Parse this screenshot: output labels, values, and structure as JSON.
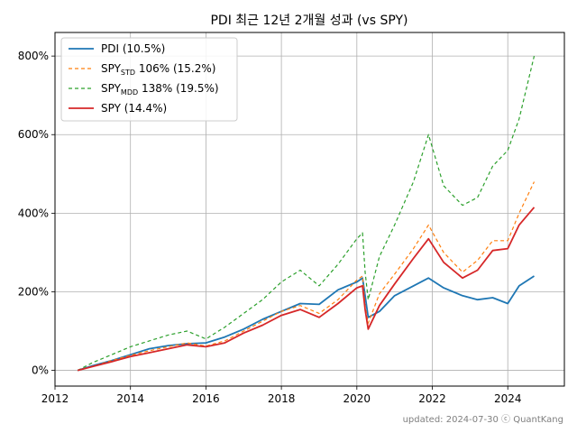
{
  "chart_data": {
    "type": "line",
    "title": "PDI 최근 12년 2개월 성과 (vs SPY)",
    "xlabel": "",
    "ylabel": "",
    "xlim": [
      2012.0,
      2025.5
    ],
    "ylim": [
      -40,
      860
    ],
    "x_ticks": [
      2012,
      2014,
      2016,
      2018,
      2020,
      2022,
      2024
    ],
    "x_tick_labels": [
      "2012",
      "2014",
      "2016",
      "2018",
      "2020",
      "2022",
      "2024"
    ],
    "y_ticks": [
      0,
      200,
      400,
      600,
      800
    ],
    "y_tick_labels": [
      "0%",
      "200%",
      "400%",
      "600%",
      "800%"
    ],
    "grid": true,
    "legend_position": "top-left",
    "footer": "updated: 2024-07-30 ⓒ QuantKang",
    "series": [
      {
        "name": "PDI (10.5%)",
        "legend": {
          "base": "PDI (10.5%)",
          "sub": "",
          "suffix": ""
        },
        "color": "#1f77b4",
        "dash": "solid",
        "width": 1.8,
        "x": [
          2012.6,
          2013.0,
          2013.5,
          2014.0,
          2014.5,
          2015.0,
          2015.5,
          2016.0,
          2016.5,
          2017.0,
          2017.5,
          2018.0,
          2018.5,
          2019.0,
          2019.5,
          2020.0,
          2020.15,
          2020.22,
          2020.3,
          2020.6,
          2021.0,
          2021.5,
          2021.9,
          2022.3,
          2022.8,
          2023.2,
          2023.6,
          2024.0,
          2024.3,
          2024.7
        ],
        "y": [
          0,
          12,
          25,
          40,
          55,
          63,
          68,
          70,
          85,
          105,
          130,
          150,
          170,
          168,
          205,
          225,
          235,
          190,
          135,
          150,
          190,
          215,
          235,
          210,
          190,
          180,
          185,
          170,
          215,
          240
        ]
      },
      {
        "name": "SPY STD 106% (15.2%)",
        "legend": {
          "base": "SPY",
          "sub": "STD",
          "suffix": " 106% (15.2%)"
        },
        "color": "#ff7f0e",
        "dash": "4,3",
        "width": 1.2,
        "x": [
          2012.6,
          2013.0,
          2013.5,
          2014.0,
          2014.5,
          2015.0,
          2015.5,
          2016.0,
          2016.5,
          2017.0,
          2017.5,
          2018.0,
          2018.5,
          2019.0,
          2019.5,
          2020.0,
          2020.15,
          2020.22,
          2020.3,
          2020.6,
          2021.0,
          2021.5,
          2021.9,
          2022.3,
          2022.8,
          2023.2,
          2023.6,
          2024.0,
          2024.3,
          2024.7
        ],
        "y": [
          0,
          10,
          25,
          38,
          50,
          60,
          70,
          62,
          75,
          100,
          125,
          150,
          165,
          145,
          180,
          230,
          240,
          165,
          120,
          195,
          245,
          310,
          370,
          300,
          250,
          280,
          330,
          330,
          400,
          480
        ]
      },
      {
        "name": "SPY MDD 138% (19.5%)",
        "legend": {
          "base": "SPY",
          "sub": "MDD",
          "suffix": " 138% (19.5%)"
        },
        "color": "#2ca02c",
        "dash": "4,3",
        "width": 1.2,
        "x": [
          2012.6,
          2013.0,
          2013.5,
          2014.0,
          2014.5,
          2015.0,
          2015.5,
          2016.0,
          2016.5,
          2017.0,
          2017.5,
          2018.0,
          2018.5,
          2019.0,
          2019.5,
          2020.0,
          2020.15,
          2020.22,
          2020.3,
          2020.6,
          2021.0,
          2021.5,
          2021.9,
          2022.3,
          2022.8,
          2023.2,
          2023.6,
          2024.0,
          2024.3,
          2024.7
        ],
        "y": [
          0,
          20,
          40,
          60,
          75,
          90,
          100,
          80,
          110,
          145,
          180,
          225,
          255,
          215,
          270,
          335,
          350,
          250,
          180,
          290,
          370,
          480,
          600,
          470,
          420,
          440,
          520,
          560,
          640,
          800
        ]
      },
      {
        "name": "SPY (14.4%)",
        "legend": {
          "base": "SPY (14.4%)",
          "sub": "",
          "suffix": ""
        },
        "color": "#d62728",
        "dash": "solid",
        "width": 1.8,
        "x": [
          2012.6,
          2013.0,
          2013.5,
          2014.0,
          2014.5,
          2015.0,
          2015.5,
          2016.0,
          2016.5,
          2017.0,
          2017.5,
          2018.0,
          2018.5,
          2019.0,
          2019.5,
          2020.0,
          2020.15,
          2020.22,
          2020.3,
          2020.6,
          2021.0,
          2021.5,
          2021.9,
          2022.3,
          2022.8,
          2023.2,
          2023.6,
          2024.0,
          2024.3,
          2024.7
        ],
        "y": [
          0,
          10,
          22,
          35,
          45,
          55,
          65,
          60,
          70,
          95,
          115,
          140,
          155,
          135,
          170,
          210,
          215,
          155,
          105,
          165,
          220,
          285,
          335,
          275,
          235,
          255,
          305,
          310,
          370,
          415
        ]
      }
    ]
  }
}
